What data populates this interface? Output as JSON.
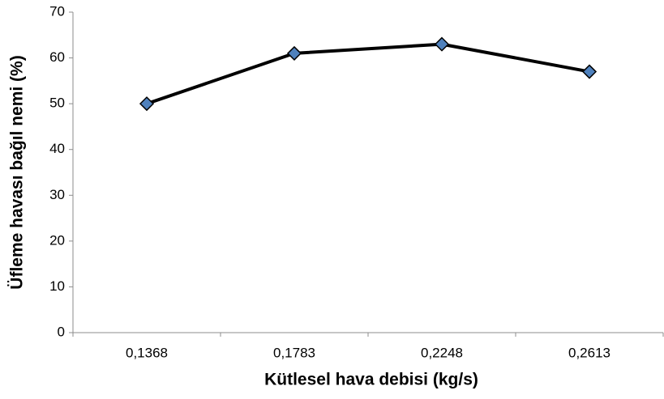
{
  "chart_data": {
    "type": "line",
    "xlabel": "Kütlesel hava debisi (kg/s)",
    "ylabel": "Üfleme havası bağıl nemi (%)",
    "categories": [
      "0,1368",
      "0,1783",
      "0,2248",
      "0,2613"
    ],
    "values": [
      50,
      61,
      63,
      57
    ],
    "color": "#4f81bd",
    "line_color": "#000000",
    "ylim": [
      0,
      70
    ],
    "yticks": [
      0,
      10,
      20,
      30,
      40,
      50,
      60,
      70
    ],
    "grid": false
  }
}
